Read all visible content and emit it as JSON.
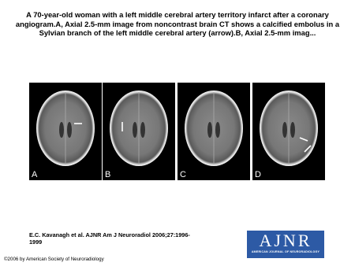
{
  "header": {
    "title": "A 70-year-old woman with a left middle cerebral artery territory infarct after a coronary angiogram.A, Axial 2.5-mm image from noncontrast brain CT shows a calcified embolus in a Sylvian branch of the left middle cerebral artery (arrow).B, Axial 2.5-mm imag..."
  },
  "figure": {
    "panels": [
      {
        "label": "A"
      },
      {
        "label": "B"
      },
      {
        "label": "C"
      },
      {
        "label": "D"
      }
    ]
  },
  "citation": "E.C. Kavanagh et al. AJNR Am J Neuroradiol 2006;27:1996-1999",
  "logo": {
    "name": "AJNR",
    "subtitle": "AMERICAN JOURNAL OF NEURORADIOLOGY"
  },
  "copyright": "©2006 by American Society of Neuroradiology"
}
